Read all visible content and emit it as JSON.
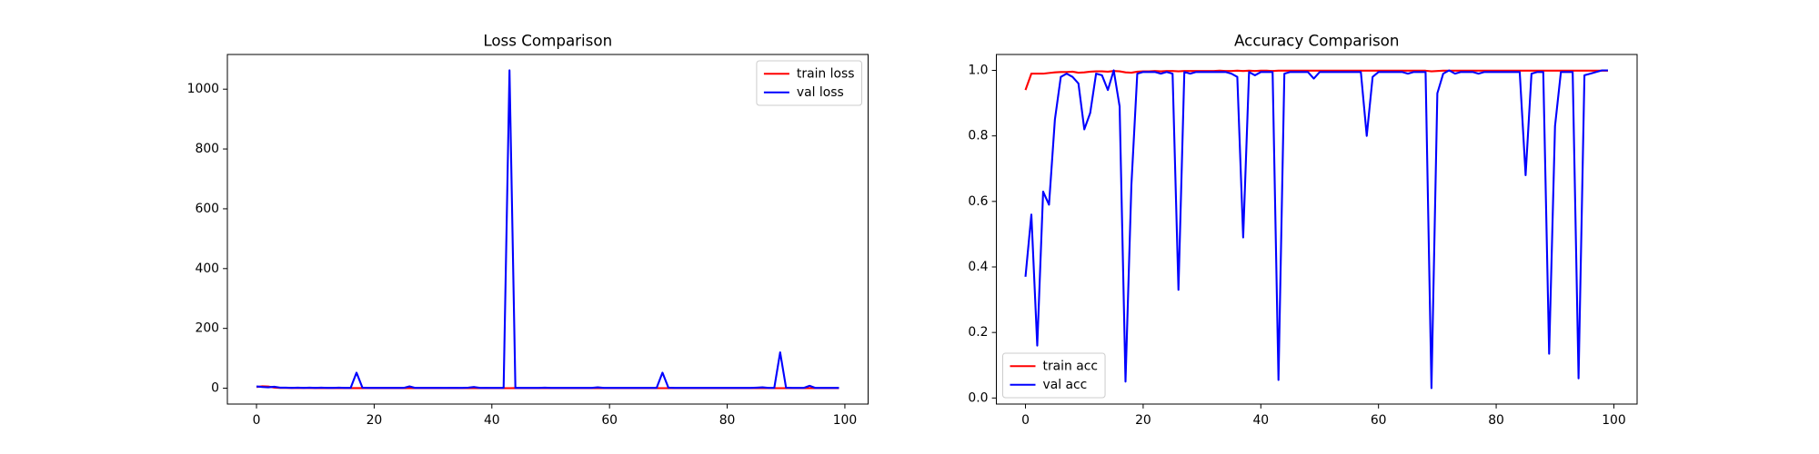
{
  "chart_data": [
    {
      "type": "line",
      "title": "Loss Comparison",
      "x": [
        0,
        1,
        2,
        3,
        4,
        5,
        6,
        7,
        8,
        9,
        10,
        11,
        12,
        13,
        14,
        15,
        16,
        17,
        18,
        19,
        20,
        21,
        22,
        23,
        24,
        25,
        26,
        27,
        28,
        29,
        30,
        31,
        32,
        33,
        34,
        35,
        36,
        37,
        38,
        39,
        40,
        41,
        42,
        43,
        44,
        45,
        46,
        47,
        48,
        49,
        50,
        51,
        52,
        53,
        54,
        55,
        56,
        57,
        58,
        59,
        60,
        61,
        62,
        63,
        64,
        65,
        66,
        67,
        68,
        69,
        70,
        71,
        72,
        73,
        74,
        75,
        76,
        77,
        78,
        79,
        80,
        81,
        82,
        83,
        84,
        85,
        86,
        87,
        88,
        89,
        90,
        91,
        92,
        93,
        94,
        95,
        96,
        97,
        98,
        99
      ],
      "series": [
        {
          "name": "train loss",
          "color": "#ff0000",
          "values": [
            4.2,
            6.5,
            5.8,
            2.1,
            1.2,
            0.9,
            0.7,
            0.6,
            0.5,
            0.5,
            0.4,
            0.4,
            0.3,
            0.4,
            0.3,
            0.3,
            0.3,
            0.2,
            0.3,
            0.2,
            0.3,
            0.2,
            0.2,
            0.3,
            0.2,
            0.2,
            0.2,
            0.2,
            0.2,
            0.2,
            0.2,
            0.2,
            0.1,
            0.2,
            0.2,
            0.1,
            0.2,
            0.1,
            0.1,
            0.2,
            0.1,
            0.1,
            0.1,
            0.1,
            0.2,
            0.1,
            0.1,
            0.1,
            0.1,
            0.1,
            0.1,
            0.1,
            0.1,
            0.1,
            0.1,
            0.1,
            0.1,
            0.1,
            0.1,
            0.1,
            0.1,
            0.1,
            0.1,
            0.1,
            0.1,
            0.1,
            0.1,
            0.1,
            0.1,
            0.1,
            0.1,
            0.1,
            0.1,
            0.1,
            0.1,
            0.1,
            0.1,
            0.1,
            0.1,
            0.1,
            0.1,
            0.1,
            0.1,
            0.1,
            0.1,
            0.1,
            0.1,
            0.1,
            0.1,
            0.1,
            0.1,
            0.1,
            0.1,
            0.1,
            0.1,
            0.1,
            0.1,
            0.1,
            0.1,
            0.1
          ]
        },
        {
          "name": "val loss",
          "color": "#0000ff",
          "values": [
            6,
            4,
            3,
            5,
            2,
            2,
            1,
            2,
            1,
            2,
            1,
            2,
            1,
            1,
            2,
            1,
            1,
            52,
            2,
            1,
            1,
            1,
            1,
            1,
            1,
            1,
            6,
            1,
            1,
            1,
            1,
            1,
            1,
            1,
            1,
            1,
            2,
            4,
            1,
            1,
            1,
            1,
            1,
            1063,
            1,
            1,
            1,
            1,
            1,
            2,
            1,
            1,
            1,
            1,
            1,
            1,
            1,
            1,
            3,
            1,
            1,
            1,
            1,
            1,
            1,
            1,
            1,
            1,
            1,
            52,
            2,
            1,
            1,
            1,
            1,
            1,
            1,
            1,
            1,
            1,
            1,
            1,
            1,
            1,
            1,
            2,
            3,
            1,
            1,
            120,
            2,
            1,
            1,
            1,
            8,
            1,
            1,
            1,
            1,
            1
          ]
        }
      ],
      "xlim": [
        -4.95,
        103.95
      ],
      "xticks": [
        0,
        20,
        40,
        60,
        80,
        100
      ],
      "ylim": [
        -53,
        1116
      ],
      "yticks": [
        0,
        200,
        400,
        600,
        800,
        1000
      ],
      "legend": "upper right"
    },
    {
      "type": "line",
      "title": "Accuracy Comparison",
      "x": [
        0,
        1,
        2,
        3,
        4,
        5,
        6,
        7,
        8,
        9,
        10,
        11,
        12,
        13,
        14,
        15,
        16,
        17,
        18,
        19,
        20,
        21,
        22,
        23,
        24,
        25,
        26,
        27,
        28,
        29,
        30,
        31,
        32,
        33,
        34,
        35,
        36,
        37,
        38,
        39,
        40,
        41,
        42,
        43,
        44,
        45,
        46,
        47,
        48,
        49,
        50,
        51,
        52,
        53,
        54,
        55,
        56,
        57,
        58,
        59,
        60,
        61,
        62,
        63,
        64,
        65,
        66,
        67,
        68,
        69,
        70,
        71,
        72,
        73,
        74,
        75,
        76,
        77,
        78,
        79,
        80,
        81,
        82,
        83,
        84,
        85,
        86,
        87,
        88,
        89,
        90,
        91,
        92,
        93,
        94,
        95,
        96,
        97,
        98,
        99
      ],
      "series": [
        {
          "name": "train acc",
          "color": "#ff0000",
          "values": [
            0.94,
            0.99,
            0.99,
            0.99,
            0.992,
            0.994,
            0.995,
            0.995,
            0.996,
            0.993,
            0.994,
            0.996,
            0.997,
            0.997,
            0.996,
            0.998,
            0.997,
            0.994,
            0.993,
            0.996,
            0.997,
            0.997,
            0.998,
            0.997,
            0.998,
            0.998,
            0.997,
            0.998,
            0.998,
            0.998,
            0.998,
            0.998,
            0.998,
            0.999,
            0.998,
            0.998,
            0.999,
            0.998,
            0.999,
            0.998,
            0.999,
            0.999,
            0.998,
            0.999,
            0.999,
            0.999,
            0.999,
            0.999,
            0.999,
            0.999,
            0.999,
            0.999,
            0.999,
            0.999,
            0.999,
            0.999,
            0.999,
            0.999,
            0.999,
            0.999,
            0.999,
            0.999,
            0.999,
            0.999,
            0.999,
            0.999,
            0.999,
            0.999,
            0.999,
            0.997,
            0.998,
            0.999,
            0.999,
            0.999,
            0.999,
            0.999,
            0.999,
            0.999,
            0.999,
            0.999,
            0.999,
            0.999,
            0.999,
            0.999,
            0.999,
            0.999,
            0.999,
            0.999,
            0.999,
            0.999,
            0.999,
            0.999,
            0.999,
            0.999,
            0.999,
            0.999,
            0.999,
            0.999,
            0.999,
            0.999
          ]
        },
        {
          "name": "val acc",
          "color": "#0000ff",
          "values": [
            0.37,
            0.56,
            0.16,
            0.63,
            0.59,
            0.85,
            0.98,
            0.99,
            0.98,
            0.96,
            0.82,
            0.87,
            0.99,
            0.985,
            0.94,
            1.0,
            0.89,
            0.05,
            0.65,
            0.99,
            0.995,
            0.995,
            0.995,
            0.99,
            0.995,
            0.99,
            0.33,
            0.995,
            0.99,
            0.995,
            0.995,
            0.995,
            0.995,
            0.995,
            0.995,
            0.99,
            0.98,
            0.49,
            0.995,
            0.985,
            0.995,
            0.995,
            0.995,
            0.055,
            0.99,
            0.995,
            0.995,
            0.995,
            0.995,
            0.975,
            0.995,
            0.995,
            0.995,
            0.995,
            0.995,
            0.995,
            0.995,
            0.995,
            0.8,
            0.98,
            0.995,
            0.995,
            0.995,
            0.995,
            0.995,
            0.99,
            0.995,
            0.995,
            0.995,
            0.03,
            0.93,
            0.99,
            1.0,
            0.99,
            0.995,
            0.995,
            0.995,
            0.99,
            0.995,
            0.995,
            0.995,
            0.995,
            0.995,
            0.995,
            0.995,
            0.68,
            0.99,
            0.995,
            0.995,
            0.135,
            0.83,
            0.995,
            0.995,
            0.995,
            0.06,
            0.985,
            0.99,
            0.995,
            1.0,
            1.0
          ]
        }
      ],
      "xlim": [
        -4.95,
        103.95
      ],
      "xticks": [
        0,
        20,
        40,
        60,
        80,
        100
      ],
      "ylim": [
        -0.0185,
        1.0485
      ],
      "yticks": [
        {
          "value": 0,
          "label": "0.0"
        },
        0.2,
        0.4,
        0.6,
        0.8,
        {
          "value": 1,
          "label": "1.0"
        }
      ],
      "legend": "lower left"
    }
  ]
}
